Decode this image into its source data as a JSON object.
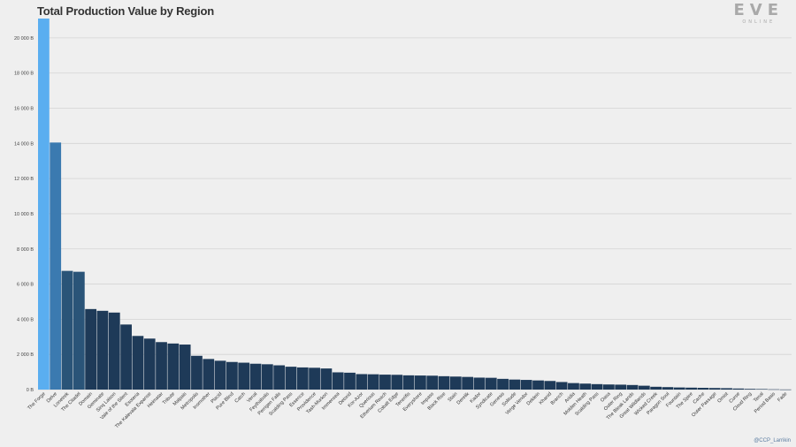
{
  "logo": {
    "word": "EVE",
    "sub": "ONLINE"
  },
  "credit": "@CCP_Larrikin",
  "colors": {
    "highlight": "#5aaef0",
    "second": "#3b7ab0",
    "third": "#2a5478",
    "base": "#1e3a58",
    "grid": "#d4d4d4"
  },
  "chart_data": {
    "type": "bar",
    "title": "Total Production Value by Region",
    "xlabel": "",
    "ylabel": "",
    "ylim": [
      0,
      21000
    ],
    "yticks": [
      0,
      2000,
      4000,
      6000,
      8000,
      10000,
      12000,
      14000,
      16000,
      18000,
      20000
    ],
    "ytick_labels": [
      "0 B",
      "2 000 B",
      "4 000 B",
      "6 000 B",
      "8 000 B",
      "10 000 B",
      "12 000 B",
      "14 000 B",
      "16 000 B",
      "18 000 B",
      "20 000 B"
    ],
    "grid": true,
    "categories": [
      "The Forge",
      "Delve",
      "Lonetrek",
      "The Citadel",
      "Domain",
      "Geminate",
      "Sinq Laison",
      "Vale of the Silent",
      "Esoteria",
      "The Kalevala Expanse",
      "Heimatar",
      "Tribute",
      "Malpais",
      "Metropolis",
      "Insmother",
      "Placid",
      "Pure Blind",
      "Catch",
      "Venal",
      "Feythabolis",
      "Perrigen Falls",
      "Scalding Pass",
      "Essence",
      "Providence",
      "Tash-Murkon",
      "Immensea",
      "Detorid",
      "Kor-Azor",
      "Querious",
      "Etherium Reach",
      "Cobalt Edge",
      "Tenerifis",
      "Everyshore",
      "Impass",
      "Black Rise",
      "Stain",
      "Derelik",
      "Kador",
      "Syndicate",
      "Genesis",
      "Solitude",
      "Verge Vendor",
      "Deklein",
      "Khanid",
      "Branch",
      "Aridia",
      "Molden Heath",
      "Scalding Pass",
      "Oasa",
      "Outer Ring",
      "The Bleak Lands",
      "Great Wildlands",
      "Wicked Creek",
      "Paragon Soul",
      "Fountain",
      "The Spire",
      "Cache",
      "Outer Passage",
      "Omist",
      "Curse",
      "Cloud Ring",
      "Tenal",
      "Period Basis",
      "Fade"
    ],
    "values": [
      21100,
      14050,
      6750,
      6700,
      4580,
      4480,
      4380,
      3700,
      3050,
      2900,
      2700,
      2620,
      2560,
      1920,
      1740,
      1640,
      1570,
      1530,
      1470,
      1440,
      1380,
      1300,
      1260,
      1240,
      1200,
      980,
      960,
      880,
      870,
      850,
      840,
      810,
      800,
      790,
      760,
      740,
      720,
      680,
      670,
      610,
      570,
      550,
      520,
      490,
      430,
      370,
      340,
      310,
      290,
      280,
      260,
      220,
      160,
      140,
      120,
      110,
      100,
      90,
      80,
      60,
      40,
      30,
      15,
      5
    ]
  }
}
